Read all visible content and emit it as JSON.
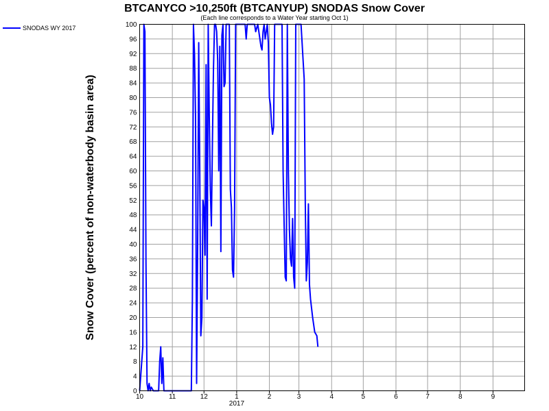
{
  "chart_data": {
    "type": "line",
    "title": "BTCANYCO >10,250ft (BTCANYUP) SNODAS Snow Cover",
    "subtitle": "(Each line corresponds to a Water Year starting Oct 1)",
    "ylabel": "Snow Cover (percent of non-waterbody basin area)",
    "xlabel": "",
    "ylim": [
      0,
      100
    ],
    "xlim": [
      "2016-10-01",
      "2017-09-30"
    ],
    "y_ticks": [
      0,
      4,
      8,
      12,
      16,
      20,
      24,
      28,
      32,
      36,
      40,
      44,
      48,
      52,
      56,
      60,
      64,
      68,
      72,
      76,
      80,
      84,
      88,
      92,
      96,
      100
    ],
    "x_ticks": [
      {
        "label": "10",
        "date": "2016-10-01"
      },
      {
        "label": "11",
        "date": "2016-11-01"
      },
      {
        "label": "12",
        "date": "2016-12-01"
      },
      {
        "label": "1",
        "date": "2017-01-01"
      },
      {
        "label": "2",
        "date": "2017-02-01"
      },
      {
        "label": "3",
        "date": "2017-03-01"
      },
      {
        "label": "4",
        "date": "2017-04-01"
      },
      {
        "label": "5",
        "date": "2017-05-01"
      },
      {
        "label": "6",
        "date": "2017-06-01"
      },
      {
        "label": "7",
        "date": "2017-07-01"
      },
      {
        "label": "8",
        "date": "2017-08-01"
      },
      {
        "label": "9",
        "date": "2017-09-01"
      }
    ],
    "year_label": {
      "text": "2017",
      "date": "2017-01-01"
    },
    "grid": true,
    "legend_position": "top-left",
    "series": [
      {
        "name": "SNODAS WY 2017",
        "color": "#0000ff",
        "points": [
          [
            "2016-10-01",
            0
          ],
          [
            "2016-10-04",
            12
          ],
          [
            "2016-10-05",
            100
          ],
          [
            "2016-10-06",
            98
          ],
          [
            "2016-10-07",
            35
          ],
          [
            "2016-10-08",
            2
          ],
          [
            "2016-10-09",
            0
          ],
          [
            "2016-10-10",
            2
          ],
          [
            "2016-10-11",
            0
          ],
          [
            "2016-10-12",
            1
          ],
          [
            "2016-10-14",
            0
          ],
          [
            "2016-10-15",
            0
          ],
          [
            "2016-10-19",
            0
          ],
          [
            "2016-10-20",
            8
          ],
          [
            "2016-10-21",
            12
          ],
          [
            "2016-10-22",
            2
          ],
          [
            "2016-10-23",
            9
          ],
          [
            "2016-10-24",
            0
          ],
          [
            "2016-11-01",
            0
          ],
          [
            "2016-11-15",
            0
          ],
          [
            "2016-11-19",
            0
          ],
          [
            "2016-11-20",
            25
          ],
          [
            "2016-11-21",
            100
          ],
          [
            "2016-11-22",
            92
          ],
          [
            "2016-11-23",
            75
          ],
          [
            "2016-11-24",
            2
          ],
          [
            "2016-11-25",
            40
          ],
          [
            "2016-11-26",
            95
          ],
          [
            "2016-11-27",
            60
          ],
          [
            "2016-11-28",
            15
          ],
          [
            "2016-11-29",
            20
          ],
          [
            "2016-11-30",
            52
          ],
          [
            "2016-12-01",
            50
          ],
          [
            "2016-12-02",
            37
          ],
          [
            "2016-12-03",
            89
          ],
          [
            "2016-12-04",
            25
          ],
          [
            "2016-12-05",
            100
          ],
          [
            "2016-12-06",
            75
          ],
          [
            "2016-12-07",
            55
          ],
          [
            "2016-12-08",
            45
          ],
          [
            "2016-12-09",
            68
          ],
          [
            "2016-12-10",
            88
          ],
          [
            "2016-12-11",
            100
          ],
          [
            "2016-12-12",
            100
          ],
          [
            "2016-12-13",
            98
          ],
          [
            "2016-12-14",
            90
          ],
          [
            "2016-12-15",
            60
          ],
          [
            "2016-12-16",
            94
          ],
          [
            "2016-12-17",
            38
          ],
          [
            "2016-12-18",
            97
          ],
          [
            "2016-12-19",
            100
          ],
          [
            "2016-12-20",
            83
          ],
          [
            "2016-12-21",
            84
          ],
          [
            "2016-12-22",
            100
          ],
          [
            "2016-12-23",
            100
          ],
          [
            "2016-12-24",
            100
          ],
          [
            "2016-12-25",
            100
          ],
          [
            "2016-12-26",
            55
          ],
          [
            "2016-12-27",
            50
          ],
          [
            "2016-12-28",
            33
          ],
          [
            "2016-12-29",
            31
          ],
          [
            "2016-12-30",
            50
          ],
          [
            "2016-12-31",
            100
          ],
          [
            "2017-01-05",
            100
          ],
          [
            "2017-01-09",
            100
          ],
          [
            "2017-01-10",
            96
          ],
          [
            "2017-01-11",
            100
          ],
          [
            "2017-01-14",
            100
          ],
          [
            "2017-01-17",
            100
          ],
          [
            "2017-01-18",
            100
          ],
          [
            "2017-01-19",
            98
          ],
          [
            "2017-01-21",
            100
          ],
          [
            "2017-01-23",
            96
          ],
          [
            "2017-01-24",
            94
          ],
          [
            "2017-01-25",
            93
          ],
          [
            "2017-01-26",
            98
          ],
          [
            "2017-01-27",
            100
          ],
          [
            "2017-01-28",
            96
          ],
          [
            "2017-01-30",
            100
          ],
          [
            "2017-01-31",
            95
          ],
          [
            "2017-02-01",
            80
          ],
          [
            "2017-02-02",
            78
          ],
          [
            "2017-02-03",
            73
          ],
          [
            "2017-02-04",
            70
          ],
          [
            "2017-02-05",
            72
          ],
          [
            "2017-02-06",
            100
          ],
          [
            "2017-02-08",
            100
          ],
          [
            "2017-02-10",
            100
          ],
          [
            "2017-02-12",
            100
          ],
          [
            "2017-02-13",
            100
          ],
          [
            "2017-02-14",
            60
          ],
          [
            "2017-02-15",
            45
          ],
          [
            "2017-02-16",
            31
          ],
          [
            "2017-02-17",
            30
          ],
          [
            "2017-02-18",
            100
          ],
          [
            "2017-02-19",
            60
          ],
          [
            "2017-02-20",
            44
          ],
          [
            "2017-02-21",
            36
          ],
          [
            "2017-02-22",
            34
          ],
          [
            "2017-02-23",
            47
          ],
          [
            "2017-02-24",
            31
          ],
          [
            "2017-02-25",
            28
          ],
          [
            "2017-02-26",
            100
          ],
          [
            "2017-02-27",
            100
          ],
          [
            "2017-02-28",
            100
          ],
          [
            "2017-03-02",
            100
          ],
          [
            "2017-03-03",
            100
          ],
          [
            "2017-03-04",
            95
          ],
          [
            "2017-03-05",
            90
          ],
          [
            "2017-03-06",
            85
          ],
          [
            "2017-03-07",
            52
          ],
          [
            "2017-03-08",
            30
          ],
          [
            "2017-03-09",
            35
          ],
          [
            "2017-03-10",
            51
          ],
          [
            "2017-03-11",
            29
          ],
          [
            "2017-03-12",
            25
          ],
          [
            "2017-03-14",
            20
          ],
          [
            "2017-03-16",
            16
          ],
          [
            "2017-03-18",
            15
          ],
          [
            "2017-03-19",
            12
          ]
        ]
      }
    ]
  }
}
